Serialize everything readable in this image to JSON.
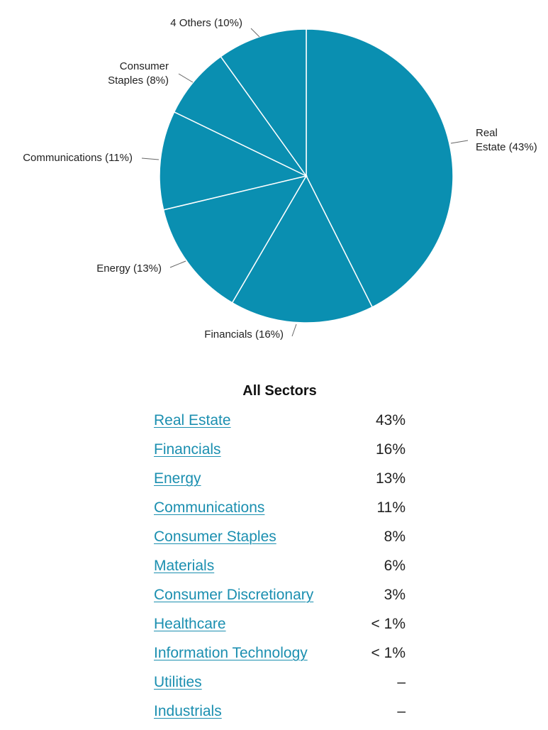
{
  "chart_data": {
    "type": "pie",
    "slice_color": "#0a8fb1",
    "separator_color": "#ffffff",
    "leader_color": "#666666",
    "slices": [
      {
        "label": [
          "Real",
          "Estate (43%)"
        ],
        "value": 43
      },
      {
        "label": [
          "Financials (16%)"
        ],
        "value": 16
      },
      {
        "label": [
          "Energy (13%)"
        ],
        "value": 13
      },
      {
        "label": [
          "Communications (11%)"
        ],
        "value": 11
      },
      {
        "label": [
          "Consumer",
          "Staples (8%)"
        ],
        "value": 8
      },
      {
        "label": [
          "4 Others (10%)"
        ],
        "value": 10
      }
    ]
  },
  "sectors": {
    "title": "All Sectors",
    "items": [
      {
        "name": "Real Estate",
        "value": "43%"
      },
      {
        "name": "Financials",
        "value": "16%"
      },
      {
        "name": "Energy",
        "value": "13%"
      },
      {
        "name": "Communications",
        "value": "11%"
      },
      {
        "name": "Consumer Staples",
        "value": "8%"
      },
      {
        "name": "Materials",
        "value": "6%"
      },
      {
        "name": "Consumer Discretionary",
        "value": "3%"
      },
      {
        "name": "Healthcare",
        "value": "< 1%"
      },
      {
        "name": "Information Technology",
        "value": "< 1%"
      },
      {
        "name": "Utilities",
        "value": "–"
      },
      {
        "name": "Industrials",
        "value": "–"
      }
    ]
  }
}
